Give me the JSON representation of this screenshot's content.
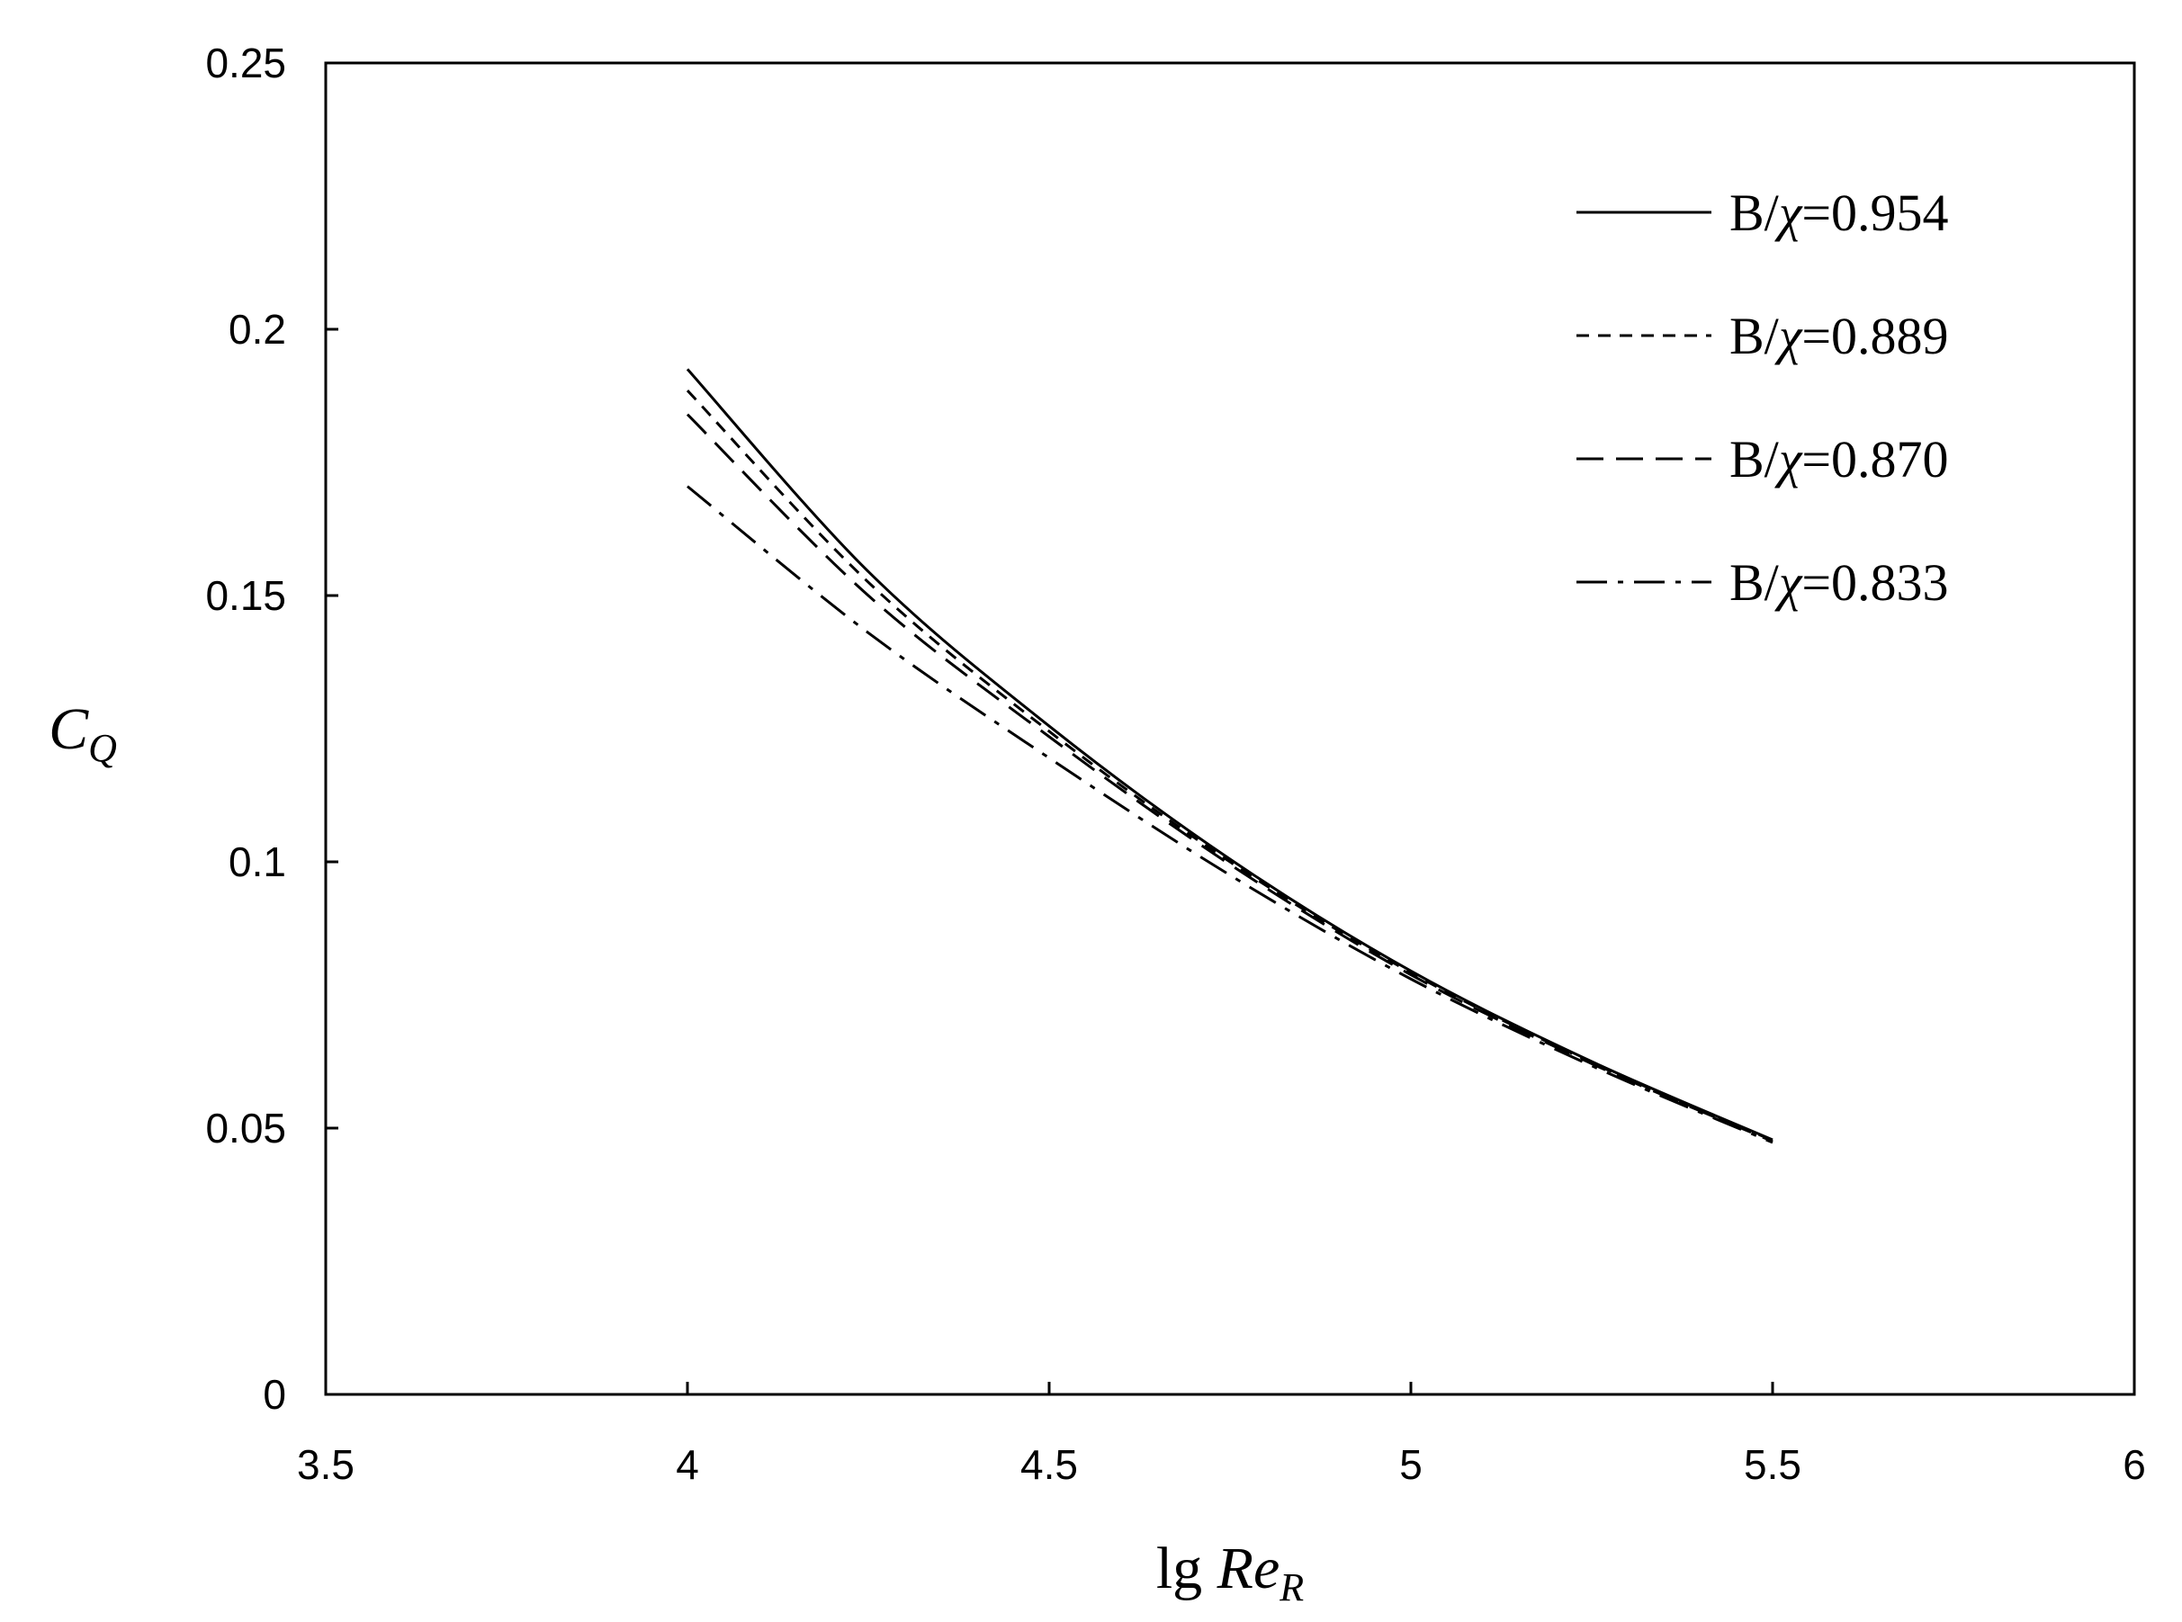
{
  "chart_data": {
    "type": "line",
    "title": "",
    "xlabel": "lg Re_R",
    "xlabel_parts": {
      "prefix": "lg ",
      "main": "Re",
      "sub": "R"
    },
    "ylabel": "C_Q",
    "ylabel_parts": {
      "main": "C",
      "sub": "Q"
    },
    "xlim": [
      3.5,
      6
    ],
    "ylim": [
      0,
      0.25
    ],
    "xticks": [
      3.5,
      4,
      4.5,
      5,
      5.5,
      6
    ],
    "xtick_labels": [
      "3.5",
      "4",
      "4.5",
      "5",
      "5.5",
      "6"
    ],
    "yticks": [
      0,
      0.05,
      0.1,
      0.15,
      0.2,
      0.25
    ],
    "ytick_labels": [
      "0",
      "0.05",
      "0.1",
      "0.15",
      "0.2",
      "0.25"
    ],
    "grid": false,
    "legend_position": "top-right",
    "x": [
      4.0,
      4.25,
      4.5,
      4.75,
      5.0,
      5.25,
      5.5
    ],
    "series": [
      {
        "name": "B/χ=0.954",
        "label_prefix": "B/",
        "label_symbol": "χ",
        "label_value": "=0.954",
        "line_style": "solid",
        "color": "#000000",
        "values": [
          0.1925,
          0.1545,
          0.1255,
          0.1005,
          0.0795,
          0.0625,
          0.0478
        ]
      },
      {
        "name": "B/χ=0.889",
        "label_prefix": "B/",
        "label_symbol": "χ",
        "label_value": "=0.889",
        "line_style": "dotted",
        "color": "#000000",
        "values": [
          0.1885,
          0.1525,
          0.1245,
          0.1,
          0.0792,
          0.0623,
          0.0477
        ]
      },
      {
        "name": "B/χ=0.870",
        "label_prefix": "B/",
        "label_symbol": "χ",
        "label_value": "=0.870",
        "line_style": "dashed",
        "color": "#000000",
        "values": [
          0.184,
          0.15,
          0.1235,
          0.0995,
          0.0788,
          0.0621,
          0.0475
        ]
      },
      {
        "name": "B/χ=0.833",
        "label_prefix": "B/",
        "label_symbol": "χ",
        "label_value": "=0.833",
        "line_style": "dash-dot",
        "color": "#000000",
        "values": [
          0.1705,
          0.143,
          0.1195,
          0.0975,
          0.078,
          0.0617,
          0.0473
        ]
      }
    ]
  }
}
